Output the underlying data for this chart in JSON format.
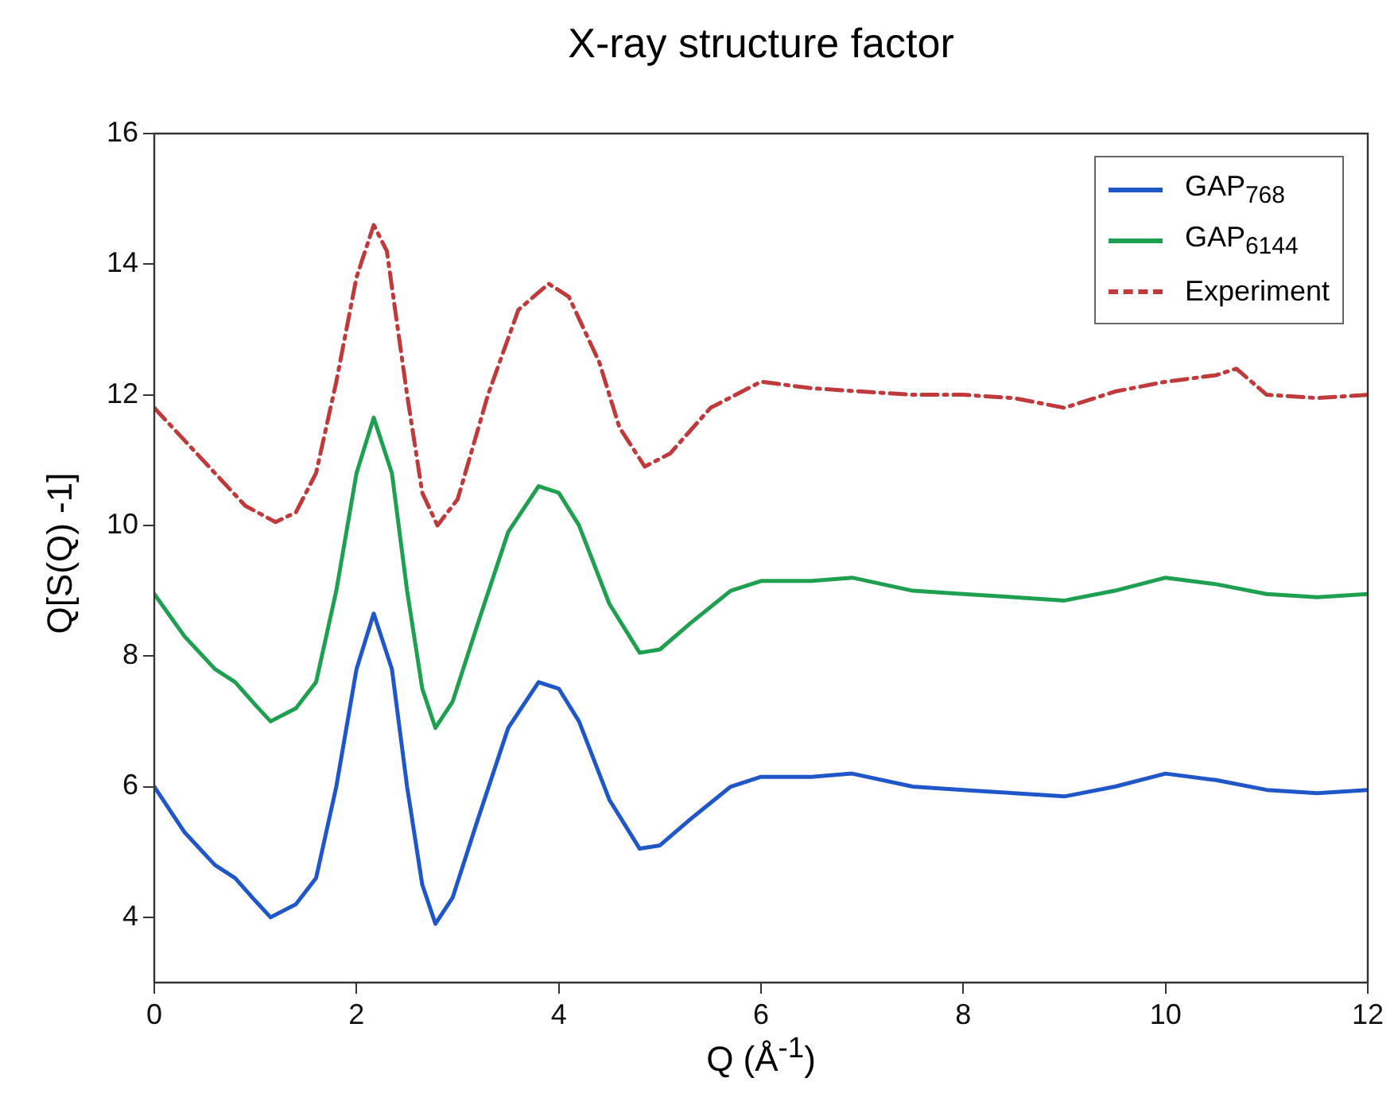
{
  "chart_data": {
    "type": "line",
    "title": "X-ray structure factor",
    "xlabel": "Q (Å$^{-1}$)",
    "ylabel": "Q[S(Q) -1]",
    "xlim": [
      0,
      12
    ],
    "xticks": [
      0,
      2,
      4,
      6,
      8,
      10,
      12
    ],
    "ylim": [
      3,
      16
    ],
    "yticks": [
      4,
      6,
      8,
      10,
      12,
      14,
      16
    ],
    "grid": false,
    "legend": "top right",
    "marker": "none",
    "series": [
      {
        "name": "GAP$_{768}$",
        "color": "#1f56c8",
        "line_style": "solid",
        "x": [
          0,
          0.3,
          0.6,
          0.8,
          1.0,
          1.15,
          1.4,
          1.6,
          1.8,
          2.0,
          2.17,
          2.35,
          2.5,
          2.65,
          2.78,
          2.95,
          3.2,
          3.5,
          3.8,
          4.0,
          4.2,
          4.5,
          4.8,
          5.0,
          5.3,
          5.7,
          6.0,
          6.5,
          6.9,
          7.5,
          8.0,
          8.5,
          9.0,
          9.5,
          10.0,
          10.5,
          11.0,
          11.5,
          12
        ],
        "values": [
          6.0,
          5.3,
          4.8,
          4.6,
          4.25,
          4.0,
          4.2,
          4.6,
          6.0,
          7.8,
          8.65,
          7.8,
          6.0,
          4.5,
          3.9,
          4.3,
          5.5,
          6.9,
          7.6,
          7.5,
          7.0,
          5.8,
          5.05,
          5.1,
          5.5,
          6.0,
          6.15,
          6.15,
          6.2,
          6.0,
          5.95,
          5.9,
          5.85,
          6.0,
          6.2,
          6.1,
          5.95,
          5.9,
          5.95
        ]
      },
      {
        "name": "GAP$_{6144}$",
        "color": "#1fa050",
        "line_style": "solid",
        "x": [
          0,
          0.3,
          0.6,
          0.8,
          1.0,
          1.15,
          1.4,
          1.6,
          1.8,
          2.0,
          2.17,
          2.35,
          2.5,
          2.65,
          2.78,
          2.95,
          3.2,
          3.5,
          3.8,
          4.0,
          4.2,
          4.5,
          4.8,
          5.0,
          5.3,
          5.7,
          6.0,
          6.5,
          6.9,
          7.5,
          8.0,
          8.5,
          9.0,
          9.5,
          10.0,
          10.5,
          11.0,
          11.5,
          12
        ],
        "values": [
          8.95,
          8.3,
          7.8,
          7.6,
          7.25,
          7.0,
          7.2,
          7.6,
          9.0,
          10.8,
          11.65,
          10.8,
          9.0,
          7.5,
          6.9,
          7.3,
          8.5,
          9.9,
          10.6,
          10.5,
          10.0,
          8.8,
          8.05,
          8.1,
          8.5,
          9.0,
          9.15,
          9.15,
          9.2,
          9.0,
          8.95,
          8.9,
          8.85,
          9.0,
          9.2,
          9.1,
          8.95,
          8.9,
          8.95
        ]
      },
      {
        "name": "Experiment",
        "color": "#c0393b",
        "line_style": "dashed",
        "x": [
          0,
          0.3,
          0.6,
          0.9,
          1.2,
          1.4,
          1.6,
          1.8,
          2.0,
          2.17,
          2.3,
          2.5,
          2.65,
          2.8,
          3.0,
          3.3,
          3.6,
          3.9,
          4.1,
          4.4,
          4.6,
          4.85,
          5.1,
          5.5,
          6.0,
          6.5,
          7.0,
          7.5,
          8.0,
          8.5,
          9.0,
          9.5,
          10.0,
          10.5,
          10.7,
          11.0,
          11.5,
          12
        ],
        "values": [
          11.8,
          11.3,
          10.8,
          10.3,
          10.05,
          10.2,
          10.8,
          12.2,
          13.8,
          14.6,
          14.2,
          12.0,
          10.5,
          10.0,
          10.4,
          12.0,
          13.3,
          13.7,
          13.5,
          12.5,
          11.5,
          10.9,
          11.1,
          11.8,
          12.2,
          12.1,
          12.05,
          12.0,
          12.0,
          11.95,
          11.8,
          12.05,
          12.2,
          12.3,
          12.4,
          12.0,
          11.95,
          12.0
        ]
      }
    ]
  }
}
